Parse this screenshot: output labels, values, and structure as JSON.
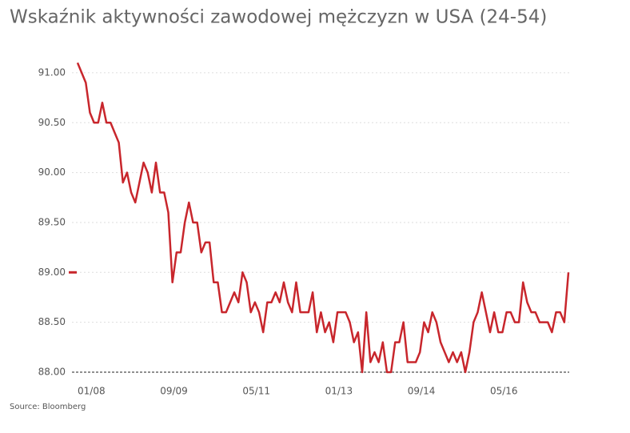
{
  "chart_data": {
    "type": "line",
    "title": "Wskaźnik aktywności zawodowej mężczyzn w USA (24-54)",
    "source": "Source: Bloomberg",
    "categories": [
      "01/08",
      null,
      null,
      null,
      null,
      null,
      null,
      null,
      null,
      null,
      null,
      null,
      null,
      null,
      null,
      null,
      null,
      null,
      null,
      null,
      "09/09",
      null,
      null,
      null,
      null,
      null,
      null,
      null,
      null,
      null,
      null,
      null,
      null,
      null,
      null,
      null,
      null,
      null,
      null,
      null,
      "05/11",
      null,
      null,
      null,
      null,
      null,
      null,
      null,
      null,
      null,
      null,
      null,
      null,
      null,
      null,
      null,
      null,
      null,
      null,
      null,
      "01/13",
      null,
      null,
      null,
      null,
      null,
      null,
      null,
      null,
      null,
      null,
      null,
      null,
      null,
      null,
      null,
      null,
      null,
      null,
      null,
      "09/14",
      null,
      null,
      null,
      null,
      null,
      null,
      null,
      null,
      null,
      null,
      null,
      null,
      null,
      null,
      null,
      null,
      null,
      null,
      null,
      "05/16",
      null,
      null,
      null,
      null,
      null,
      null,
      null,
      null,
      null,
      null,
      null,
      null,
      null,
      null,
      null,
      null,
      null,
      null,
      null
    ],
    "series": [
      {
        "color": "#c8262c",
        "values": [
          91.1,
          91.0,
          90.9,
          90.6,
          90.5,
          90.5,
          90.7,
          90.5,
          90.5,
          90.4,
          90.3,
          89.9,
          90.0,
          89.8,
          89.7,
          89.9,
          90.1,
          90.0,
          89.8,
          90.1,
          89.8,
          89.8,
          89.6,
          88.9,
          89.2,
          89.2,
          89.5,
          89.7,
          89.5,
          89.5,
          89.2,
          89.3,
          89.3,
          88.9,
          88.9,
          88.6,
          88.6,
          88.7,
          88.8,
          88.7,
          89.0,
          88.9,
          88.6,
          88.7,
          88.6,
          88.4,
          88.7,
          88.7,
          88.8,
          88.7,
          88.9,
          88.7,
          88.6,
          88.9,
          88.6,
          88.6,
          88.6,
          88.8,
          88.4,
          88.6,
          88.4,
          88.5,
          88.3,
          88.6,
          88.6,
          88.6,
          88.5,
          88.3,
          88.4,
          88.0,
          88.6,
          88.1,
          88.2,
          88.1,
          88.3,
          88.0,
          88.0,
          88.3,
          88.3,
          88.5,
          88.1,
          88.1,
          88.1,
          88.2,
          88.5,
          88.4,
          88.6,
          88.5,
          88.3,
          88.2,
          88.1,
          88.2,
          88.1,
          88.2,
          88.0,
          88.2,
          88.5,
          88.6,
          88.8,
          88.6,
          88.4,
          88.6,
          88.4,
          88.4,
          88.6,
          88.6,
          88.5,
          88.5,
          88.9,
          88.7,
          88.6,
          88.6,
          88.5,
          88.5,
          88.5,
          88.4,
          88.6,
          88.6,
          88.5,
          89.0
        ]
      }
    ],
    "ylim": [
      88,
      91.1
    ],
    "yticks": [
      {
        "value": 88,
        "label": "88.00"
      },
      {
        "value": 88.5,
        "label": "88.50"
      },
      {
        "value": 89,
        "label": "89.00"
      },
      {
        "value": 89.5,
        "label": "89.50"
      },
      {
        "value": 90,
        "label": "90.00"
      },
      {
        "value": 90.5,
        "label": "90.50"
      },
      {
        "value": 91,
        "label": "91.00"
      }
    ],
    "grid": true
  }
}
